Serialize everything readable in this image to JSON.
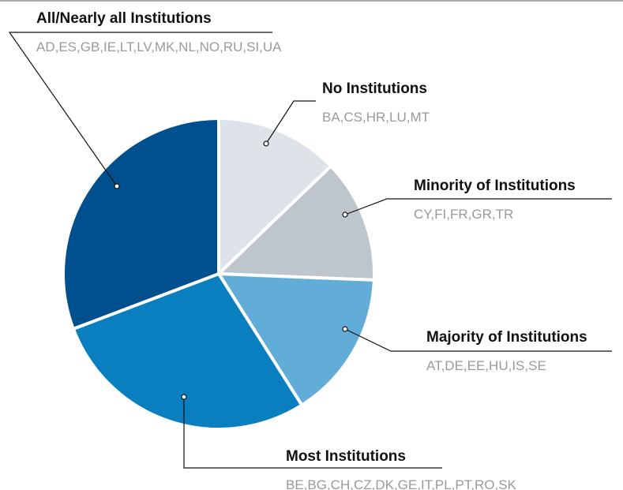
{
  "chart_data": {
    "type": "pie",
    "categories": [
      "No Institutions",
      "Minority of Institutions",
      "Majority of Institutions",
      "Most Institutions",
      "All/Nearly all Institutions"
    ],
    "details": [
      "BA,CS,HR,LU,MT",
      "CY,FI,FR,GR,TR",
      "AT,DE,EE,HU,IS,SE",
      "BE,BG,CH,CZ,DK,GE,IT,PL,PT,RO,SK",
      "AD,ES,GB,IE,LT,LV,MK,NL,NO,RU,SI,UA"
    ],
    "values": [
      5,
      5,
      6,
      11,
      12
    ],
    "colors": [
      "#dde3e8",
      "#bcc6cc",
      "#62add8",
      "#0a7fc0",
      "#005090"
    ]
  }
}
